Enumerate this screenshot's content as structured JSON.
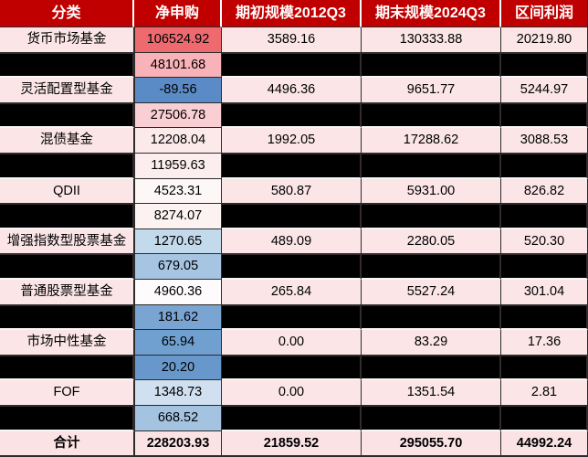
{
  "header": {
    "labels": [
      "分类",
      "净申购",
      "期初规模2012Q3",
      "期末规模2024Q3",
      "区间利润"
    ],
    "bg": "#C00000",
    "text_color": "#FFFFFF"
  },
  "colors": {
    "row_pink": "#FBE5E7",
    "total_pink": "#FBE2E5",
    "redacted_black": "#000000",
    "grid_line": "#2B2B2B",
    "scale_max_red": "#EE6A6F",
    "scale_min_blue": "#5B8BC7"
  },
  "rows": [
    {
      "category": "货币市场基金",
      "redacted": false,
      "total": false,
      "net": "106524.92",
      "net_bg": "#EE6A6F",
      "begin": "3589.16",
      "end": "130333.88",
      "profit": "20219.80"
    },
    {
      "category": "",
      "redacted": true,
      "total": false,
      "net": "48101.68",
      "net_bg": "#F9B3B8",
      "begin": "",
      "end": "",
      "profit": ""
    },
    {
      "category": "灵活配置型基金",
      "redacted": false,
      "total": false,
      "net": "-89.56",
      "net_bg": "#5B8BC7",
      "begin": "4496.36",
      "end": "9651.77",
      "profit": "5244.97"
    },
    {
      "category": "",
      "redacted": true,
      "total": false,
      "net": "27506.78",
      "net_bg": "#FACFD3",
      "begin": "",
      "end": "",
      "profit": ""
    },
    {
      "category": "混债基金",
      "redacted": false,
      "total": false,
      "net": "12208.04",
      "net_bg": "#FCEAEB",
      "begin": "1992.05",
      "end": "17288.62",
      "profit": "3088.53"
    },
    {
      "category": "",
      "redacted": true,
      "total": false,
      "net": "11959.63",
      "net_bg": "#FCEDEE",
      "begin": "",
      "end": "",
      "profit": ""
    },
    {
      "category": "QDII",
      "redacted": false,
      "total": false,
      "net": "4523.31",
      "net_bg": "#FDF7F7",
      "begin": "580.87",
      "end": "5931.00",
      "profit": "826.82"
    },
    {
      "category": "",
      "redacted": true,
      "total": false,
      "net": "8274.07",
      "net_bg": "#FCF2F2",
      "begin": "",
      "end": "",
      "profit": ""
    },
    {
      "category": "增强指数型股票基金",
      "redacted": false,
      "total": false,
      "net": "1270.65",
      "net_bg": "#C3D9EC",
      "begin": "489.09",
      "end": "2280.05",
      "profit": "520.30"
    },
    {
      "category": "",
      "redacted": true,
      "total": false,
      "net": "679.05",
      "net_bg": "#A6C5E2",
      "begin": "",
      "end": "",
      "profit": ""
    },
    {
      "category": "普通股票型基金",
      "redacted": false,
      "total": false,
      "net": "4960.36",
      "net_bg": "#FDFBFB",
      "begin": "265.84",
      "end": "5527.24",
      "profit": "301.04"
    },
    {
      "category": "",
      "redacted": true,
      "total": false,
      "net": "181.62",
      "net_bg": "#7AA5D3",
      "begin": "",
      "end": "",
      "profit": ""
    },
    {
      "category": "市场中性基金",
      "redacted": false,
      "total": false,
      "net": "65.94",
      "net_bg": "#6FA0D0",
      "begin": "0.00",
      "end": "83.29",
      "profit": "17.36"
    },
    {
      "category": "",
      "redacted": true,
      "total": false,
      "net": "20.20",
      "net_bg": "#6898CB",
      "begin": "",
      "end": "",
      "profit": ""
    },
    {
      "category": "FOF",
      "redacted": false,
      "total": false,
      "net": "1348.73",
      "net_bg": "#D0E0F0",
      "begin": "0.00",
      "end": "1351.54",
      "profit": "2.81"
    },
    {
      "category": "",
      "redacted": true,
      "total": false,
      "net": "668.52",
      "net_bg": "#A3C3E0",
      "begin": "",
      "end": "",
      "profit": ""
    },
    {
      "category": "合计",
      "redacted": false,
      "total": true,
      "net": "228203.93",
      "net_bg": "#FBE2E5",
      "begin": "21859.52",
      "end": "295055.70",
      "profit": "44992.24"
    }
  ]
}
